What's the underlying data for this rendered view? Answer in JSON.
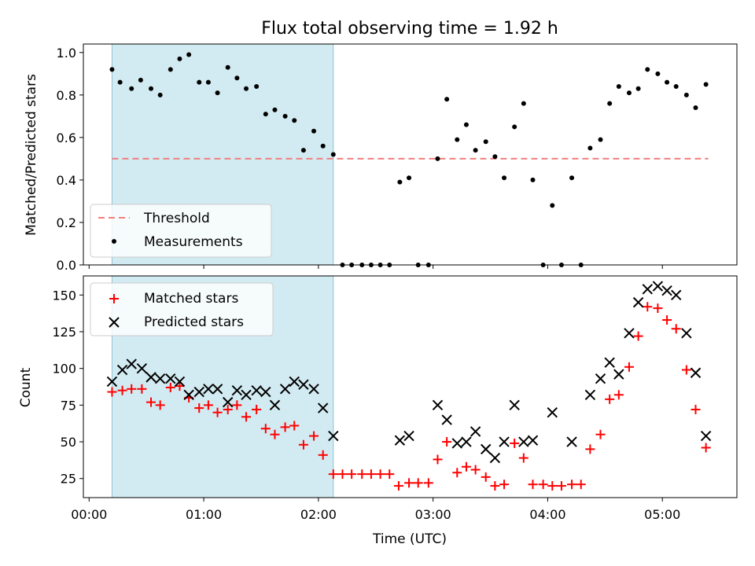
{
  "chart_data": [
    {
      "type": "scatter",
      "title": "Flux total observing time = 1.92 h",
      "xlabel": "",
      "ylabel": "Matched/Predicted stars",
      "ylim": [
        0,
        1.04
      ],
      "yticks": [
        "0.0",
        "0.2",
        "0.4",
        "0.6",
        "0.8",
        "1.0"
      ],
      "ytick_values": [
        0,
        0.2,
        0.4,
        0.6,
        0.8,
        1.0
      ],
      "xlim_hours": [
        -0.05,
        5.65
      ],
      "highlight_span_hours": [
        0.2,
        2.13
      ],
      "legend": {
        "position": "lower-left"
      },
      "threshold": {
        "name": "Threshold",
        "value": 0.5,
        "x_range_hours": [
          0.2,
          5.4
        ],
        "color": "#f08080",
        "style": "dashed"
      },
      "series": [
        {
          "name": "Measurements",
          "color": "#000000",
          "marker": "dot",
          "points": [
            [
              0.2,
              0.92
            ],
            [
              0.27,
              0.86
            ],
            [
              0.37,
              0.83
            ],
            [
              0.45,
              0.87
            ],
            [
              0.54,
              0.83
            ],
            [
              0.62,
              0.8
            ],
            [
              0.71,
              0.92
            ],
            [
              0.79,
              0.97
            ],
            [
              0.87,
              0.99
            ],
            [
              0.96,
              0.86
            ],
            [
              1.04,
              0.86
            ],
            [
              1.12,
              0.81
            ],
            [
              1.21,
              0.93
            ],
            [
              1.29,
              0.88
            ],
            [
              1.37,
              0.83
            ],
            [
              1.46,
              0.84
            ],
            [
              1.54,
              0.71
            ],
            [
              1.62,
              0.73
            ],
            [
              1.71,
              0.7
            ],
            [
              1.79,
              0.68
            ],
            [
              1.87,
              0.54
            ],
            [
              1.96,
              0.63
            ],
            [
              2.04,
              0.56
            ],
            [
              2.13,
              0.52
            ],
            [
              2.21,
              0.0
            ],
            [
              2.29,
              0.0
            ],
            [
              2.38,
              0.0
            ],
            [
              2.46,
              0.0
            ],
            [
              2.54,
              0.0
            ],
            [
              2.62,
              0.0
            ],
            [
              2.71,
              0.39
            ],
            [
              2.79,
              0.41
            ],
            [
              2.87,
              0.0
            ],
            [
              2.96,
              0.0
            ],
            [
              3.04,
              0.5
            ],
            [
              3.12,
              0.78
            ],
            [
              3.21,
              0.59
            ],
            [
              3.29,
              0.66
            ],
            [
              3.37,
              0.54
            ],
            [
              3.46,
              0.58
            ],
            [
              3.54,
              0.51
            ],
            [
              3.62,
              0.41
            ],
            [
              3.71,
              0.65
            ],
            [
              3.79,
              0.76
            ],
            [
              3.87,
              0.4
            ],
            [
              3.96,
              0.0
            ],
            [
              4.04,
              0.28
            ],
            [
              4.12,
              0.0
            ],
            [
              4.21,
              0.41
            ],
            [
              4.29,
              0.0
            ],
            [
              4.37,
              0.55
            ],
            [
              4.46,
              0.59
            ],
            [
              4.54,
              0.76
            ],
            [
              4.62,
              0.84
            ],
            [
              4.71,
              0.81
            ],
            [
              4.79,
              0.83
            ],
            [
              4.87,
              0.92
            ],
            [
              4.96,
              0.9
            ],
            [
              5.04,
              0.86
            ],
            [
              5.12,
              0.84
            ],
            [
              5.21,
              0.8
            ],
            [
              5.29,
              0.74
            ],
            [
              5.38,
              0.85
            ]
          ]
        }
      ]
    },
    {
      "type": "scatter",
      "title": "",
      "xlabel": "Time (UTC)",
      "ylabel": "Count",
      "ylim": [
        12,
        163
      ],
      "yticks": [
        "25",
        "50",
        "75",
        "100",
        "125",
        "150"
      ],
      "ytick_values": [
        25,
        50,
        75,
        100,
        125,
        150
      ],
      "xticks": [
        "00:00",
        "01:00",
        "02:00",
        "03:00",
        "04:00",
        "05:00"
      ],
      "xtick_values_hours": [
        0,
        1,
        2,
        3,
        4,
        5
      ],
      "xlim_hours": [
        -0.05,
        5.65
      ],
      "highlight_span_hours": [
        0.2,
        2.13
      ],
      "legend": {
        "position": "top-left"
      },
      "series": [
        {
          "name": "Matched stars",
          "color": "#ff0000",
          "marker": "plus",
          "points": [
            [
              0.2,
              84
            ],
            [
              0.29,
              85
            ],
            [
              0.37,
              86
            ],
            [
              0.46,
              86
            ],
            [
              0.54,
              77
            ],
            [
              0.62,
              75
            ],
            [
              0.71,
              87
            ],
            [
              0.79,
              88
            ],
            [
              0.87,
              80
            ],
            [
              0.96,
              73
            ],
            [
              1.04,
              75
            ],
            [
              1.12,
              70
            ],
            [
              1.21,
              72
            ],
            [
              1.29,
              75
            ],
            [
              1.37,
              67
            ],
            [
              1.46,
              72
            ],
            [
              1.54,
              59
            ],
            [
              1.62,
              55
            ],
            [
              1.71,
              60
            ],
            [
              1.79,
              61
            ],
            [
              1.87,
              48
            ],
            [
              1.96,
              54
            ],
            [
              2.04,
              41
            ],
            [
              2.13,
              28
            ],
            [
              2.21,
              28
            ],
            [
              2.29,
              28
            ],
            [
              2.38,
              28
            ],
            [
              2.46,
              28
            ],
            [
              2.54,
              28
            ],
            [
              2.62,
              28
            ],
            [
              2.7,
              20
            ],
            [
              2.79,
              22
            ],
            [
              2.87,
              22
            ],
            [
              2.96,
              22
            ],
            [
              3.04,
              38
            ],
            [
              3.12,
              50
            ],
            [
              3.21,
              29
            ],
            [
              3.29,
              33
            ],
            [
              3.37,
              31
            ],
            [
              3.46,
              26
            ],
            [
              3.54,
              20
            ],
            [
              3.62,
              21
            ],
            [
              3.71,
              49
            ],
            [
              3.79,
              39
            ],
            [
              3.87,
              21
            ],
            [
              3.96,
              21
            ],
            [
              4.04,
              20
            ],
            [
              4.12,
              20
            ],
            [
              4.21,
              21
            ],
            [
              4.29,
              21
            ],
            [
              4.37,
              45
            ],
            [
              4.46,
              55
            ],
            [
              4.54,
              79
            ],
            [
              4.62,
              82
            ],
            [
              4.71,
              101
            ],
            [
              4.79,
              122
            ],
            [
              4.87,
              142
            ],
            [
              4.96,
              141
            ],
            [
              5.04,
              133
            ],
            [
              5.12,
              127
            ],
            [
              5.21,
              99
            ],
            [
              5.29,
              72
            ],
            [
              5.38,
              46
            ]
          ]
        },
        {
          "name": "Predicted stars",
          "color": "#000000",
          "marker": "x",
          "points": [
            [
              0.2,
              91
            ],
            [
              0.29,
              99
            ],
            [
              0.37,
              103
            ],
            [
              0.46,
              100
            ],
            [
              0.54,
              94
            ],
            [
              0.62,
              93
            ],
            [
              0.71,
              93
            ],
            [
              0.79,
              91
            ],
            [
              0.87,
              82
            ],
            [
              0.96,
              84
            ],
            [
              1.04,
              86
            ],
            [
              1.12,
              86
            ],
            [
              1.21,
              77
            ],
            [
              1.29,
              85
            ],
            [
              1.37,
              82
            ],
            [
              1.46,
              85
            ],
            [
              1.54,
              84
            ],
            [
              1.62,
              75
            ],
            [
              1.71,
              86
            ],
            [
              1.79,
              91
            ],
            [
              1.87,
              89
            ],
            [
              1.96,
              86
            ],
            [
              2.04,
              73
            ],
            [
              2.13,
              54
            ],
            [
              2.71,
              51
            ],
            [
              2.79,
              54
            ],
            [
              3.04,
              75
            ],
            [
              3.12,
              65
            ],
            [
              3.21,
              49
            ],
            [
              3.29,
              50
            ],
            [
              3.37,
              57
            ],
            [
              3.46,
              45
            ],
            [
              3.54,
              39
            ],
            [
              3.62,
              50
            ],
            [
              3.71,
              75
            ],
            [
              3.79,
              50
            ],
            [
              3.87,
              51
            ],
            [
              4.04,
              70
            ],
            [
              4.21,
              50
            ],
            [
              4.37,
              82
            ],
            [
              4.46,
              93
            ],
            [
              4.54,
              104
            ],
            [
              4.62,
              96
            ],
            [
              4.71,
              124
            ],
            [
              4.79,
              145
            ],
            [
              4.87,
              154
            ],
            [
              4.96,
              156
            ],
            [
              5.04,
              153
            ],
            [
              5.12,
              150
            ],
            [
              5.21,
              124
            ],
            [
              5.29,
              97
            ],
            [
              5.38,
              54
            ]
          ]
        }
      ]
    }
  ]
}
